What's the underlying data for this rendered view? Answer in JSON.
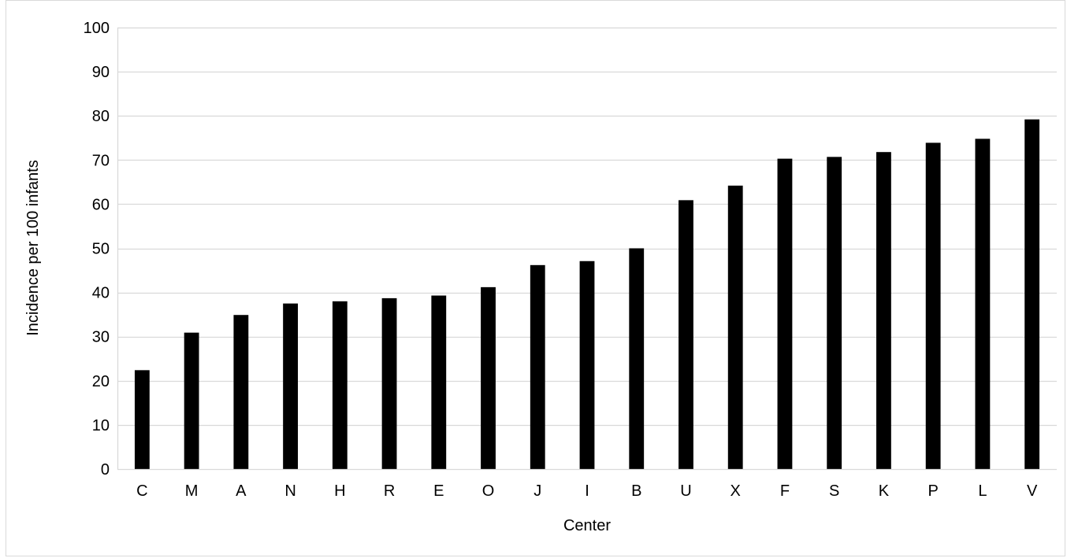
{
  "chart_data": {
    "type": "bar",
    "title": "",
    "xlabel": "Center",
    "ylabel": "Incidence per 100 infants",
    "categories": [
      "C",
      "M",
      "A",
      "N",
      "H",
      "R",
      "E",
      "O",
      "J",
      "I",
      "B",
      "U",
      "X",
      "F",
      "S",
      "K",
      "P",
      "L",
      "V"
    ],
    "values": [
      22.4,
      30.9,
      34.9,
      37.5,
      38.0,
      38.7,
      39.3,
      41.2,
      46.2,
      47.1,
      50.0,
      60.9,
      64.2,
      70.3,
      70.7,
      71.8,
      73.9,
      74.8,
      79.2
    ],
    "ylim": [
      0,
      100
    ],
    "yticks": [
      0,
      10,
      20,
      30,
      40,
      50,
      60,
      70,
      80,
      90,
      100
    ],
    "grid": true,
    "legend": "none",
    "colors": {
      "bar": "#000000",
      "gridline": "#d9d9d9",
      "axis": "#d9d9d9",
      "text": "#000000"
    }
  }
}
